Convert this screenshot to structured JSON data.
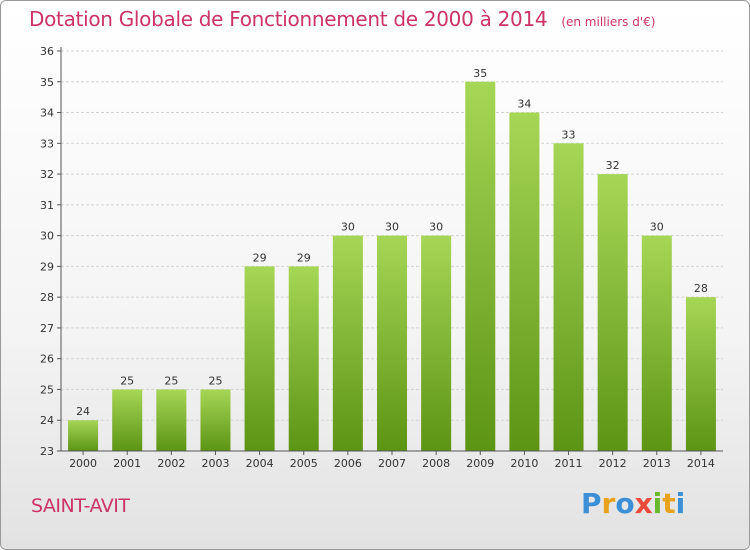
{
  "header": {
    "title": "Dotation Globale de Fonctionnement de 2000 à 2014",
    "unit": "(en milliers d'€)"
  },
  "footer": {
    "commune": "SAINT-AVIT",
    "brand": "Proxiti",
    "brand_letters": [
      {
        "ch": "P",
        "color": "#3b8fd6"
      },
      {
        "ch": "r",
        "color": "#e8a21c"
      },
      {
        "ch": "o",
        "color": "#3b8fd6"
      },
      {
        "ch": "x",
        "color": "#e84a3c"
      },
      {
        "ch": "i",
        "color": "#6ab82e"
      },
      {
        "ch": "t",
        "color": "#e8a21c"
      },
      {
        "ch": "i",
        "color": "#3b8fd6"
      }
    ]
  },
  "colors": {
    "title": "#cc3366",
    "bar_light": "#a6d656",
    "bar_dark": "#5c9414",
    "grid": "#d4d4d4",
    "axis": "#555555",
    "text": "#333333"
  },
  "chart_data": {
    "type": "bar",
    "title": "Dotation Globale de Fonctionnement de 2000 à 2014",
    "xlabel": "",
    "ylabel": "",
    "categories": [
      "2000",
      "2001",
      "2002",
      "2003",
      "2004",
      "2005",
      "2006",
      "2007",
      "2008",
      "2009",
      "2010",
      "2011",
      "2012",
      "2013",
      "2014"
    ],
    "values": [
      24,
      25,
      25,
      25,
      29,
      29,
      30,
      30,
      30,
      35,
      34,
      33,
      32,
      30,
      28
    ],
    "ylim": [
      23,
      36
    ],
    "yticks": [
      23,
      24,
      25,
      26,
      27,
      28,
      29,
      30,
      31,
      32,
      33,
      34,
      35,
      36
    ],
    "grid": true,
    "data_labels": true
  }
}
